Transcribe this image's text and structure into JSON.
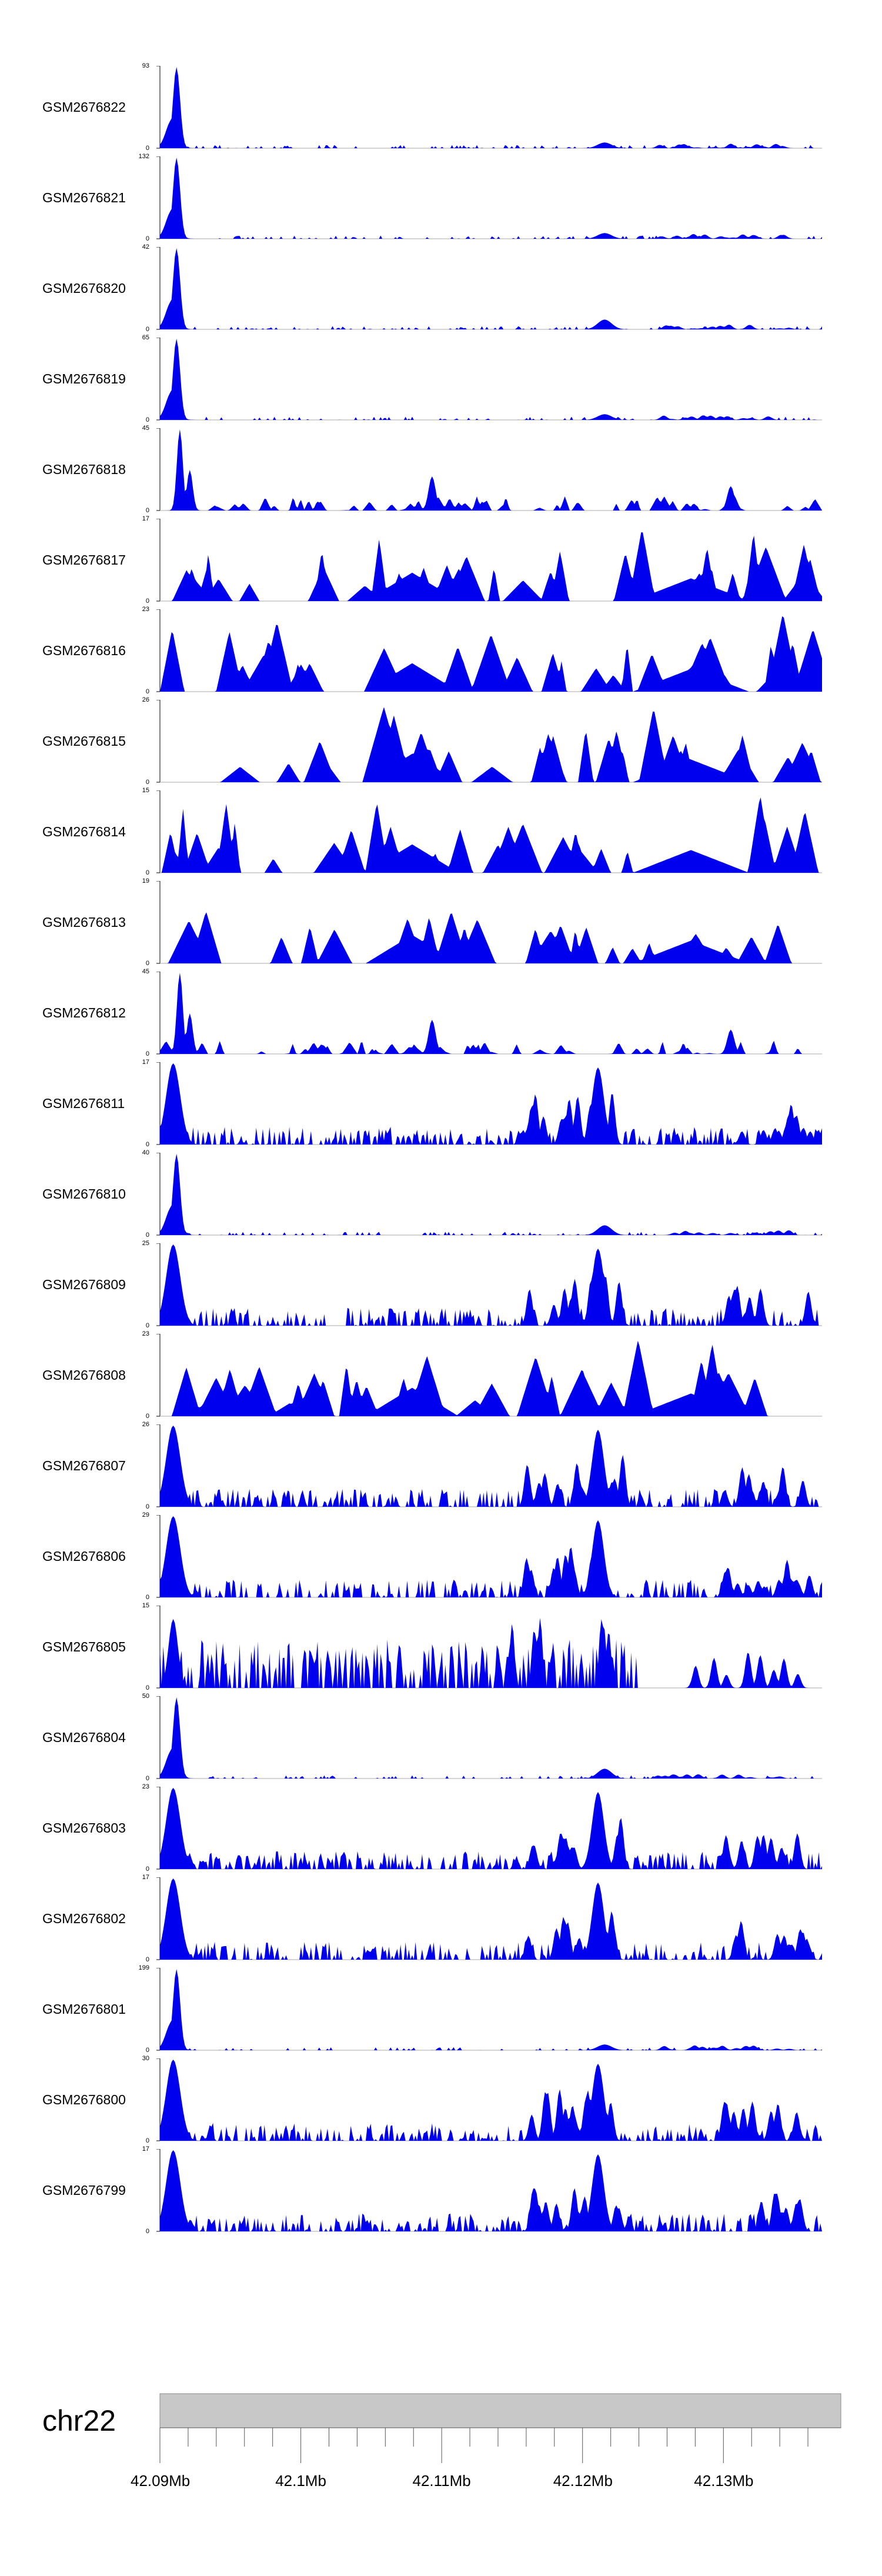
{
  "chart_data": {
    "type": "area",
    "title": "",
    "chromosome": "chr22",
    "x_axis": {
      "min": 42.09,
      "max": 42.137,
      "unit": "Mb",
      "ticks": [
        "42.09Mb",
        "42.1Mb",
        "42.11Mb",
        "42.12Mb",
        "42.13Mb"
      ],
      "tick_values": [
        42.09,
        42.1,
        42.11,
        42.12,
        42.13
      ]
    },
    "tracks": [
      {
        "name": "GSM2676822",
        "ymax": 93,
        "ymin": 0,
        "profile": "early_spike"
      },
      {
        "name": "GSM2676821",
        "ymax": 132,
        "ymin": 0,
        "profile": "early_spike"
      },
      {
        "name": "GSM2676820",
        "ymax": 42,
        "ymin": 0,
        "profile": "early_spike_late"
      },
      {
        "name": "GSM2676819",
        "ymax": 65,
        "ymin": 0,
        "profile": "early_spike"
      },
      {
        "name": "GSM2676818",
        "ymax": 45,
        "ymin": 0,
        "profile": "spike_sparse"
      },
      {
        "name": "GSM2676817",
        "ymax": 17,
        "ymin": 0,
        "profile": "sparse_triangles"
      },
      {
        "name": "GSM2676816",
        "ymax": 23,
        "ymin": 0,
        "profile": "sparse_triangles"
      },
      {
        "name": "GSM2676815",
        "ymax": 26,
        "ymin": 0,
        "profile": "sparse_triangles"
      },
      {
        "name": "GSM2676814",
        "ymax": 15,
        "ymin": 0,
        "profile": "sparse_triangles"
      },
      {
        "name": "GSM2676813",
        "ymax": 19,
        "ymin": 0,
        "profile": "sparse_triangles"
      },
      {
        "name": "GSM2676812",
        "ymax": 45,
        "ymin": 0,
        "profile": "spike_sparse"
      },
      {
        "name": "GSM2676811",
        "ymax": 17,
        "ymin": 0,
        "profile": "dense_dual"
      },
      {
        "name": "GSM2676810",
        "ymax": 40,
        "ymin": 0,
        "profile": "early_spike_late"
      },
      {
        "name": "GSM2676809",
        "ymax": 25,
        "ymin": 0,
        "profile": "dense_dual"
      },
      {
        "name": "GSM2676808",
        "ymax": 23,
        "ymin": 0,
        "profile": "sparse_triangles"
      },
      {
        "name": "GSM2676807",
        "ymax": 26,
        "ymin": 0,
        "profile": "dense_dual"
      },
      {
        "name": "GSM2676806",
        "ymax": 29,
        "ymin": 0,
        "profile": "dense_dual"
      },
      {
        "name": "GSM2676805",
        "ymax": 15,
        "ymin": 0,
        "profile": "dense_uniform"
      },
      {
        "name": "GSM2676804",
        "ymax": 50,
        "ymin": 0,
        "profile": "early_spike_late"
      },
      {
        "name": "GSM2676803",
        "ymax": 23,
        "ymin": 0,
        "profile": "dense_dual"
      },
      {
        "name": "GSM2676802",
        "ymax": 17,
        "ymin": 0,
        "profile": "dense_dual"
      },
      {
        "name": "GSM2676801",
        "ymax": 199,
        "ymin": 0,
        "profile": "early_spike"
      },
      {
        "name": "GSM2676800",
        "ymax": 30,
        "ymin": 0,
        "profile": "dense_dual"
      },
      {
        "name": "GSM2676799",
        "ymax": 17,
        "ymin": 0,
        "profile": "dense_dual"
      }
    ],
    "fill_color": "#0000ee",
    "ideogram_color": "#c8c8c8"
  }
}
